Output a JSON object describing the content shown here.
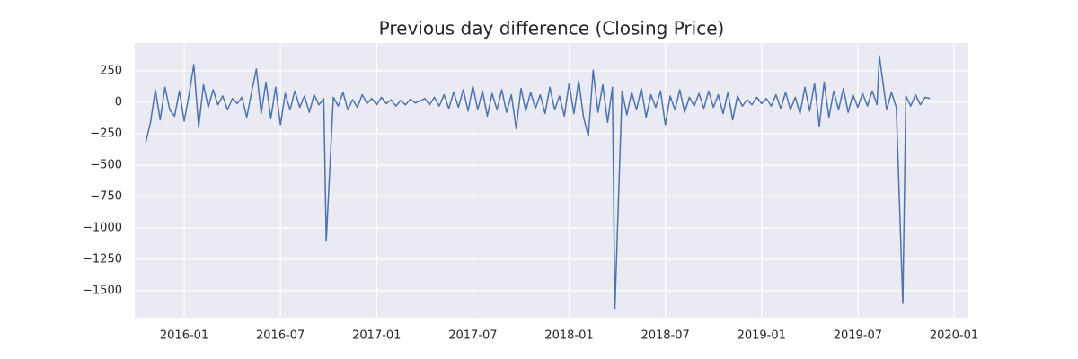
{
  "chart_data": {
    "type": "line",
    "title": "Previous day difference (Closing Price)",
    "x": [
      2015.8,
      2015.825,
      2015.85,
      2015.875,
      2015.9,
      2015.925,
      2015.95,
      2015.975,
      2016,
      2016.025,
      2016.05,
      2016.075,
      2016.1,
      2016.125,
      2016.15,
      2016.175,
      2016.2,
      2016.225,
      2016.25,
      2016.275,
      2016.3,
      2016.325,
      2016.35,
      2016.375,
      2016.4,
      2016.425,
      2016.45,
      2016.475,
      2016.5,
      2016.525,
      2016.55,
      2016.575,
      2016.6,
      2016.625,
      2016.65,
      2016.675,
      2016.7,
      2016.725,
      2016.738,
      2016.775,
      2016.8,
      2016.825,
      2016.85,
      2016.875,
      2016.9,
      2016.925,
      2016.95,
      2016.975,
      2017,
      2017.025,
      2017.05,
      2017.075,
      2017.1,
      2017.125,
      2017.15,
      2017.175,
      2017.2,
      2017.225,
      2017.25,
      2017.275,
      2017.3,
      2017.325,
      2017.35,
      2017.375,
      2017.4,
      2017.425,
      2017.45,
      2017.475,
      2017.5,
      2017.525,
      2017.55,
      2017.575,
      2017.6,
      2017.625,
      2017.65,
      2017.675,
      2017.7,
      2017.725,
      2017.75,
      2017.775,
      2017.8,
      2017.825,
      2017.85,
      2017.875,
      2017.9,
      2017.925,
      2017.95,
      2017.975,
      2018,
      2018.025,
      2018.05,
      2018.075,
      2018.1,
      2018.125,
      2018.15,
      2018.175,
      2018.2,
      2018.225,
      2018.238,
      2018.275,
      2018.3,
      2018.325,
      2018.35,
      2018.375,
      2018.4,
      2018.425,
      2018.45,
      2018.475,
      2018.5,
      2018.525,
      2018.55,
      2018.575,
      2018.6,
      2018.625,
      2018.65,
      2018.675,
      2018.7,
      2018.725,
      2018.75,
      2018.775,
      2018.8,
      2018.825,
      2018.85,
      2018.875,
      2018.9,
      2018.925,
      2018.95,
      2018.975,
      2019,
      2019.025,
      2019.05,
      2019.075,
      2019.1,
      2019.125,
      2019.15,
      2019.175,
      2019.2,
      2019.225,
      2019.25,
      2019.275,
      2019.3,
      2019.325,
      2019.35,
      2019.375,
      2019.4,
      2019.425,
      2019.45,
      2019.475,
      2019.5,
      2019.525,
      2019.55,
      2019.575,
      2019.6,
      2019.612,
      2019.65,
      2019.675,
      2019.7,
      2019.734,
      2019.75,
      2019.775,
      2019.8,
      2019.825,
      2019.85,
      2019.875
    ],
    "values": [
      -320,
      -160,
      100,
      -140,
      120,
      -60,
      -110,
      90,
      -150,
      60,
      300,
      -200,
      140,
      -40,
      100,
      -20,
      50,
      -60,
      30,
      -10,
      40,
      -120,
      80,
      265,
      -90,
      160,
      -130,
      120,
      -180,
      70,
      -60,
      90,
      -40,
      50,
      -80,
      60,
      -20,
      30,
      -1105,
      40,
      -30,
      80,
      -60,
      20,
      -40,
      60,
      -10,
      30,
      -20,
      40,
      -10,
      20,
      -30,
      15,
      -20,
      25,
      -5,
      10,
      30,
      -20,
      40,
      -30,
      60,
      -50,
      80,
      -40,
      100,
      -70,
      130,
      -60,
      90,
      -110,
      70,
      -60,
      100,
      -80,
      60,
      -210,
      110,
      -70,
      80,
      -50,
      60,
      -90,
      120,
      -60,
      50,
      -110,
      150,
      -90,
      170,
      -120,
      -270,
      255,
      -80,
      140,
      -160,
      120,
      -1640,
      90,
      -100,
      80,
      -60,
      110,
      -120,
      60,
      -40,
      90,
      -180,
      50,
      -60,
      100,
      -80,
      40,
      -30,
      70,
      -50,
      90,
      -40,
      60,
      -90,
      80,
      -140,
      50,
      -30,
      20,
      -20,
      40,
      -10,
      30,
      -30,
      60,
      -50,
      80,
      -60,
      40,
      -90,
      120,
      -70,
      150,
      -190,
      160,
      -120,
      90,
      -60,
      110,
      -80,
      60,
      -40,
      70,
      -30,
      90,
      -20,
      370,
      -60,
      80,
      -40,
      -1600,
      50,
      -30,
      60,
      -20,
      40,
      30
    ],
    "color": "#4c72b0",
    "xlim": [
      2015.743,
      2020.07
    ],
    "xticks": [
      {
        "value": 2016,
        "label": "2016-01"
      },
      {
        "value": 2016.5,
        "label": "2016-07"
      },
      {
        "value": 2017,
        "label": "2017-01"
      },
      {
        "value": 2017.5,
        "label": "2017-07"
      },
      {
        "value": 2018,
        "label": "2018-01"
      },
      {
        "value": 2018.5,
        "label": "2018-07"
      },
      {
        "value": 2019,
        "label": "2019-01"
      },
      {
        "value": 2019.5,
        "label": "2019-07"
      },
      {
        "value": 2020,
        "label": "2020-01"
      }
    ],
    "ylim": [
      -1714,
      471
    ],
    "yticks": [
      250,
      0,
      {
        "value": -250,
        "label": "−250"
      },
      {
        "value": -500,
        "label": "−500"
      },
      {
        "value": -750,
        "label": "−750"
      },
      {
        "value": -1000,
        "label": "−1000"
      },
      {
        "value": -1250,
        "label": "−1250"
      },
      {
        "value": -1500,
        "label": "−1500"
      }
    ],
    "grid": true
  }
}
